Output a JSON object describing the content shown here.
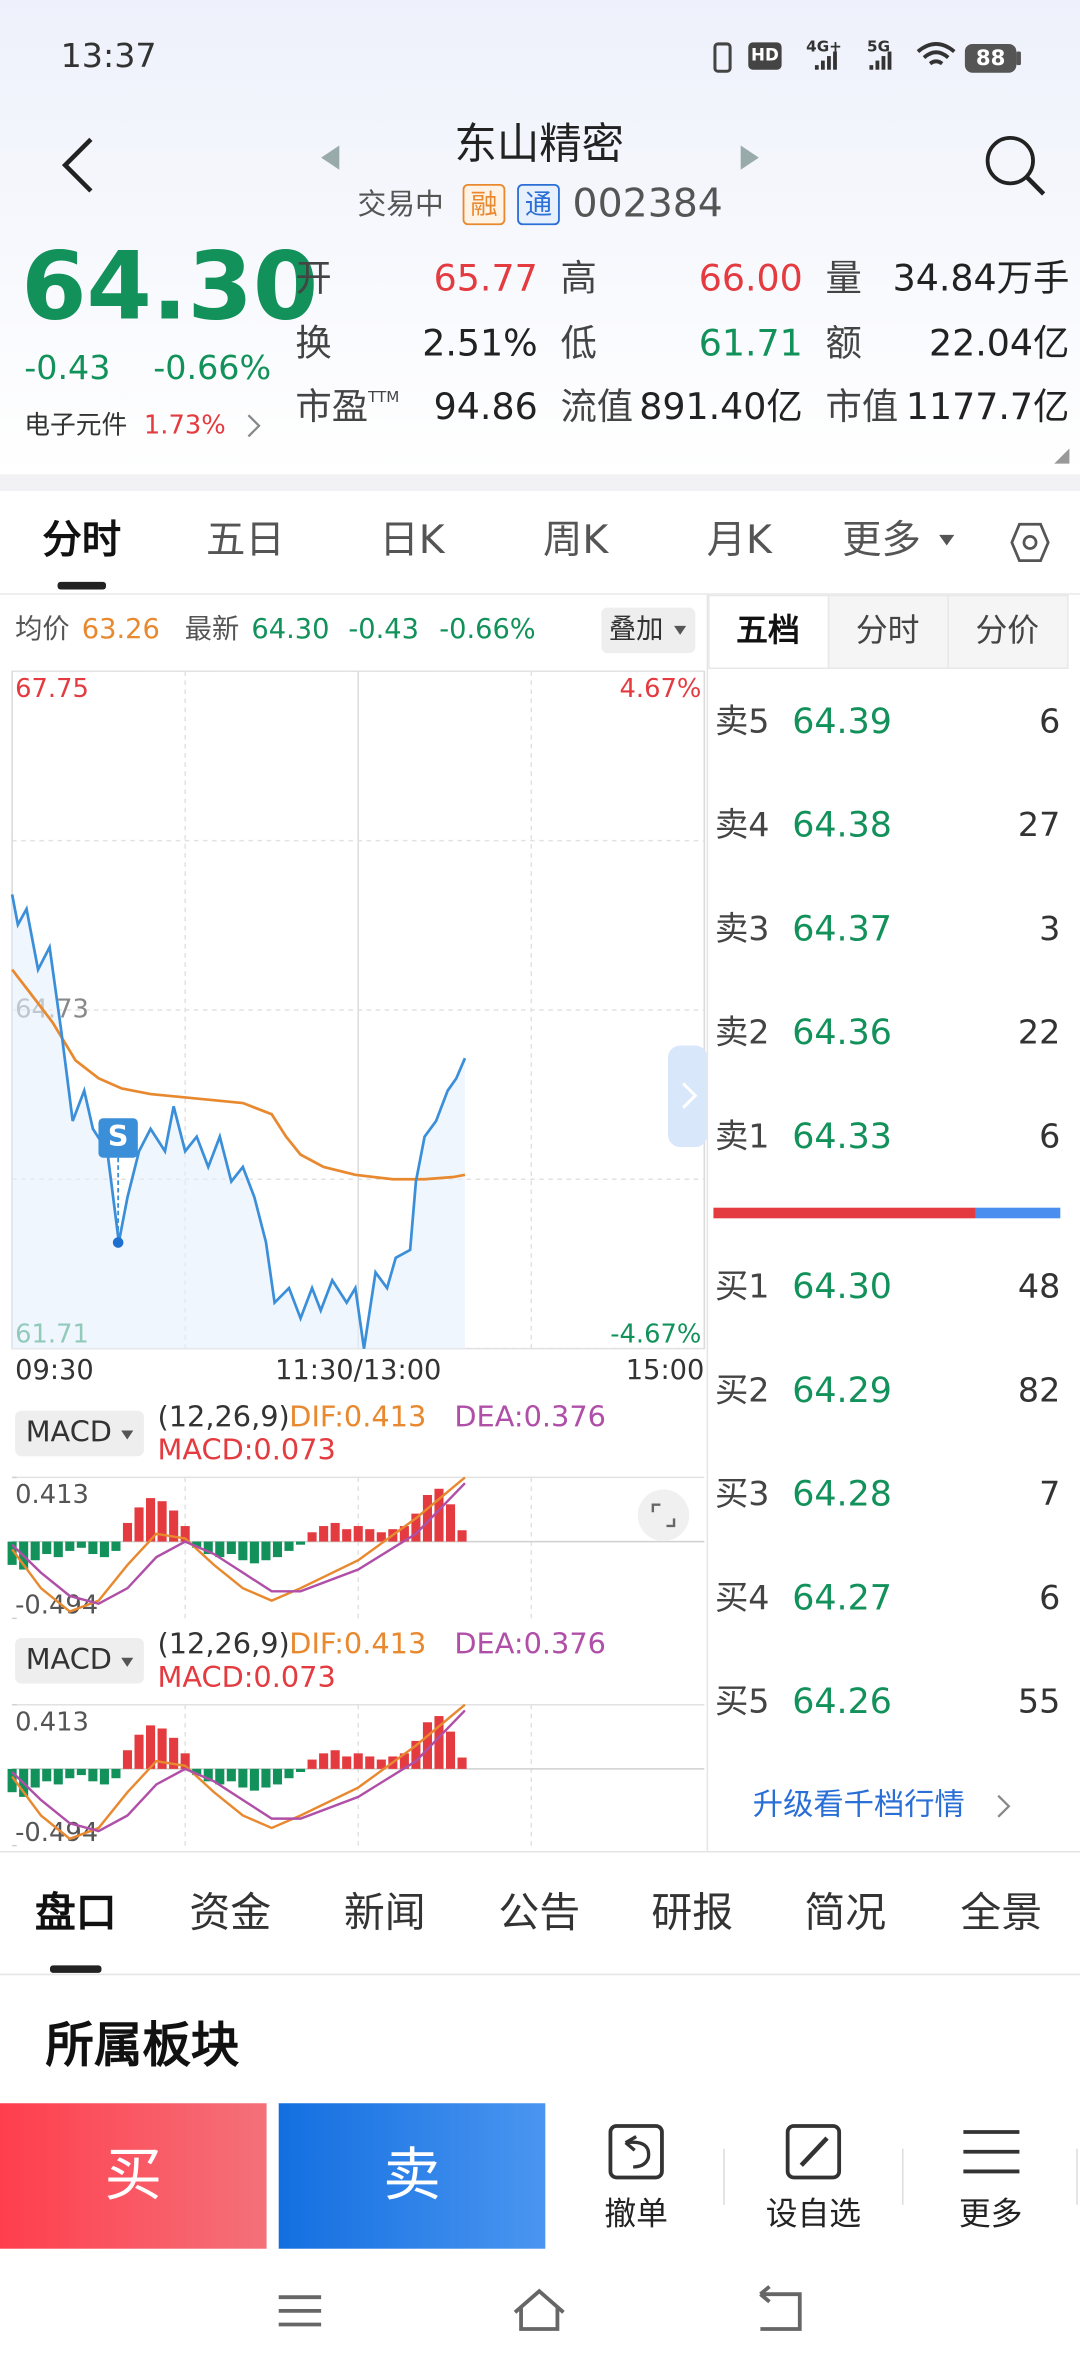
{
  "status_bar": {
    "time": "13:37",
    "hd": "HD",
    "network": [
      "4G+",
      "5G"
    ],
    "battery": "88"
  },
  "header": {
    "title": "东山精密",
    "status": "交易中",
    "badges": [
      "融",
      "通"
    ],
    "code": "002384"
  },
  "quote": {
    "price": "64.30",
    "change": "-0.43",
    "change_pct": "-0.66%",
    "sector": "电子元件",
    "sector_change": "1.73%",
    "stats": [
      {
        "label": "开",
        "value": "65.77",
        "color": "#e33b3f"
      },
      {
        "label": "高",
        "value": "66.00",
        "color": "#e33b3f"
      },
      {
        "label": "量",
        "value": "34.84万手",
        "color": "#222222"
      },
      {
        "label": "换",
        "value": "2.51%",
        "color": "#222222"
      },
      {
        "label": "低",
        "value": "61.71",
        "color": "#12925a"
      },
      {
        "label": "额",
        "value": "22.04亿",
        "color": "#222222"
      },
      {
        "label": "市盈",
        "label_sup": "TTM",
        "value": "94.86",
        "color": "#222222"
      },
      {
        "label": "流值",
        "value": "891.40亿",
        "color": "#222222"
      },
      {
        "label": "市值",
        "value": "1177.7亿",
        "color": "#222222"
      }
    ]
  },
  "tabs": {
    "items": [
      "分时",
      "五日",
      "日K",
      "周K",
      "月K",
      "更多"
    ],
    "selected": 0
  },
  "chart_data": [
    {
      "type": "line",
      "xlim": [
        0,
        240
      ],
      "xticks": [
        {
          "value": 0,
          "label": "09:30"
        },
        {
          "value": 120,
          "label": "11:30/13:00"
        },
        {
          "value": 240,
          "label": "15:00"
        }
      ],
      "ylim": [
        61.71,
        67.75
      ],
      "yticks": [
        67.75,
        64.73,
        61.71
      ],
      "y2lim": [
        -4.67,
        4.67
      ],
      "y2ticks": [
        {
          "value": 4.67,
          "label": "4.67%"
        },
        {
          "value": -4.67,
          "label": "-4.67%"
        }
      ],
      "grid": true,
      "series": [
        {
          "name": "最新",
          "color": "#3b8fd9",
          "x": [
            0,
            2,
            5,
            9,
            13,
            17,
            21,
            25,
            28,
            33,
            37,
            40,
            44,
            48,
            53,
            56,
            60,
            64,
            68,
            72,
            76,
            80,
            84,
            88,
            91,
            96,
            100,
            104,
            107,
            111,
            116,
            119,
            122,
            126,
            130,
            133,
            138,
            140,
            143,
            147,
            151,
            154,
            157
          ],
          "values": [
            65.76,
            65.49,
            65.63,
            65.09,
            65.29,
            64.55,
            63.74,
            64.01,
            63.67,
            63.47,
            62.66,
            63.06,
            63.47,
            63.67,
            63.47,
            63.87,
            63.47,
            63.6,
            63.33,
            63.6,
            63.2,
            63.33,
            63.06,
            62.66,
            62.12,
            62.25,
            61.98,
            62.25,
            62.05,
            62.32,
            62.12,
            62.25,
            61.71,
            62.39,
            62.25,
            62.52,
            62.59,
            63.2,
            63.6,
            63.74,
            64.01,
            64.12,
            64.3
          ]
        },
        {
          "name": "均价",
          "color": "#e8892f",
          "x": [
            0,
            6,
            14,
            22,
            30,
            38,
            48,
            64,
            80,
            90,
            95,
            100,
            108,
            119,
            132,
            143,
            153,
            157
          ],
          "values": [
            65.09,
            64.89,
            64.62,
            64.28,
            64.12,
            64.03,
            63.98,
            63.94,
            63.9,
            63.8,
            63.6,
            63.44,
            63.33,
            63.26,
            63.22,
            63.22,
            63.24,
            63.26
          ]
        }
      ],
      "readout": {
        "avg": "63.26",
        "last": "64.30",
        "change": "-0.43",
        "change_pct": "-0.66%"
      },
      "overlay_button": "叠加",
      "signal": "S"
    },
    {
      "type": "macd",
      "indicator": "MACD",
      "params": "(12,26,9)",
      "readouts": [
        "DIF:0.413",
        "DEA:0.376",
        "MACD:0.073"
      ],
      "xlim": [
        0,
        240
      ],
      "ylim": [
        -0.494,
        0.413
      ],
      "yticks": [
        0.413,
        -0.494
      ],
      "series": [
        {
          "name": "MACD",
          "up_color": "#e33b3f",
          "down_color": "#12925a",
          "x": [
            0,
            4,
            8,
            12,
            16,
            20,
            24,
            28,
            32,
            36,
            40,
            44,
            48,
            52,
            56,
            60,
            64,
            68,
            72,
            76,
            80,
            84,
            88,
            92,
            96,
            100,
            104,
            108,
            112,
            116,
            120,
            124,
            128,
            132,
            136,
            140,
            144,
            148,
            152,
            156
          ],
          "values": [
            -0.15,
            -0.18,
            -0.12,
            -0.08,
            -0.1,
            -0.06,
            -0.04,
            -0.08,
            -0.1,
            -0.06,
            0.12,
            0.22,
            0.28,
            0.26,
            0.2,
            0.1,
            -0.04,
            -0.08,
            -0.1,
            -0.08,
            -0.12,
            -0.14,
            -0.12,
            -0.1,
            -0.06,
            -0.02,
            0.06,
            0.1,
            0.12,
            0.08,
            0.1,
            0.08,
            0.06,
            0.08,
            0.1,
            0.18,
            0.3,
            0.34,
            0.24,
            0.073
          ]
        },
        {
          "name": "DIF",
          "color": "#e8892f",
          "x": [
            0,
            10,
            20,
            30,
            40,
            50,
            60,
            70,
            80,
            90,
            100,
            120,
            140,
            157
          ],
          "values": [
            -0.05,
            -0.3,
            -0.45,
            -0.38,
            -0.15,
            0.05,
            0.02,
            -0.15,
            -0.3,
            -0.38,
            -0.3,
            -0.12,
            0.15,
            0.413
          ]
        },
        {
          "name": "DEA",
          "color": "#b04fa8",
          "x": [
            0,
            10,
            20,
            30,
            40,
            50,
            60,
            70,
            80,
            90,
            100,
            120,
            140,
            157
          ],
          "values": [
            -0.02,
            -0.2,
            -0.35,
            -0.4,
            -0.3,
            -0.1,
            0.0,
            -0.08,
            -0.2,
            -0.32,
            -0.32,
            -0.18,
            0.05,
            0.376
          ]
        }
      ]
    }
  ],
  "order_book": {
    "tabs": [
      "五档",
      "分时",
      "分价"
    ],
    "selected": 0,
    "asks": [
      {
        "label": "卖5",
        "price": "64.39",
        "volume": 6
      },
      {
        "label": "卖4",
        "price": "64.38",
        "volume": 27
      },
      {
        "label": "卖3",
        "price": "64.37",
        "volume": 3
      },
      {
        "label": "卖2",
        "price": "64.36",
        "volume": 22
      },
      {
        "label": "卖1",
        "price": "64.33",
        "volume": 6
      }
    ],
    "bids": [
      {
        "label": "买1",
        "price": "64.30",
        "volume": 48
      },
      {
        "label": "买2",
        "price": "64.29",
        "volume": 82
      },
      {
        "label": "买3",
        "price": "64.28",
        "volume": 7
      },
      {
        "label": "买4",
        "price": "64.27",
        "volume": 6
      },
      {
        "label": "买5",
        "price": "64.26",
        "volume": 55
      }
    ],
    "upgrade_link": "升级看千档行情"
  },
  "bottom_tabs": {
    "items": [
      "盘口",
      "资金",
      "新闻",
      "公告",
      "研报",
      "简况",
      "全景"
    ],
    "selected": 0
  },
  "section_title": "所属板块",
  "actions": {
    "buy": "买",
    "sell": "卖",
    "tools": [
      "撤单",
      "设自选",
      "更多"
    ]
  }
}
